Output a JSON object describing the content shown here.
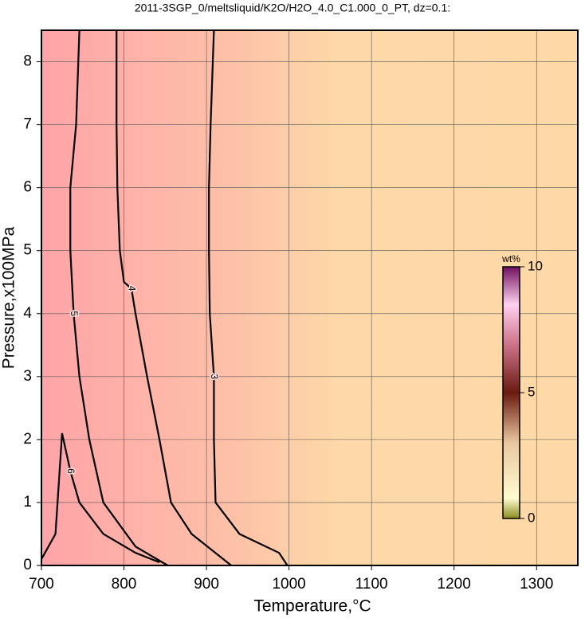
{
  "chart_data": {
    "type": "contour",
    "title": "2011-3SGP_0/meltsliquid/K2O/H2O_4.0_C1.000_0_PT, dz=0.1:",
    "x_label": "Temperature,°C",
    "y_label": "Pressure,x100MPa",
    "xlim": [
      700,
      1350
    ],
    "ylim": [
      0,
      8.5
    ],
    "xticks": [
      700,
      800,
      900,
      1000,
      1100,
      1200,
      1300
    ],
    "yticks": [
      0,
      1,
      2,
      3,
      4,
      5,
      6,
      7,
      8
    ],
    "grid": true,
    "colorbar": {
      "label": "wt%",
      "lim": [
        0,
        10
      ],
      "ticks": [
        0,
        5,
        10
      ]
    },
    "contours": [
      {
        "level": 3,
        "x": [
          998,
          988,
          940,
          911,
          909,
          909,
          904,
          903,
          903,
          905,
          909
        ],
        "y": [
          0,
          0.2,
          0.5,
          1,
          2,
          3,
          4,
          5,
          6,
          7,
          8.5
        ]
      },
      {
        "level": 4,
        "x": [
          930,
          882,
          857,
          843,
          828,
          814,
          809,
          800,
          795,
          792,
          791,
          791
        ],
        "y": [
          0,
          0.5,
          1,
          2,
          3,
          4,
          4.4,
          4.5,
          5,
          6,
          7,
          8.5
        ]
      },
      {
        "level": 5,
        "x": [
          853,
          814,
          775,
          758,
          746,
          739,
          735,
          735,
          742,
          746
        ],
        "y": [
          0,
          0.3,
          1,
          2,
          3,
          4,
          5,
          6,
          7,
          8.5
        ]
      },
      {
        "level": 6,
        "x": [
          843,
          814,
          775,
          746,
          735,
          725,
          722,
          717,
          700
        ],
        "y": [
          0.05,
          0.2,
          0.5,
          1,
          1.5,
          2.1,
          1.5,
          0.5,
          0.1
        ]
      }
    ]
  }
}
